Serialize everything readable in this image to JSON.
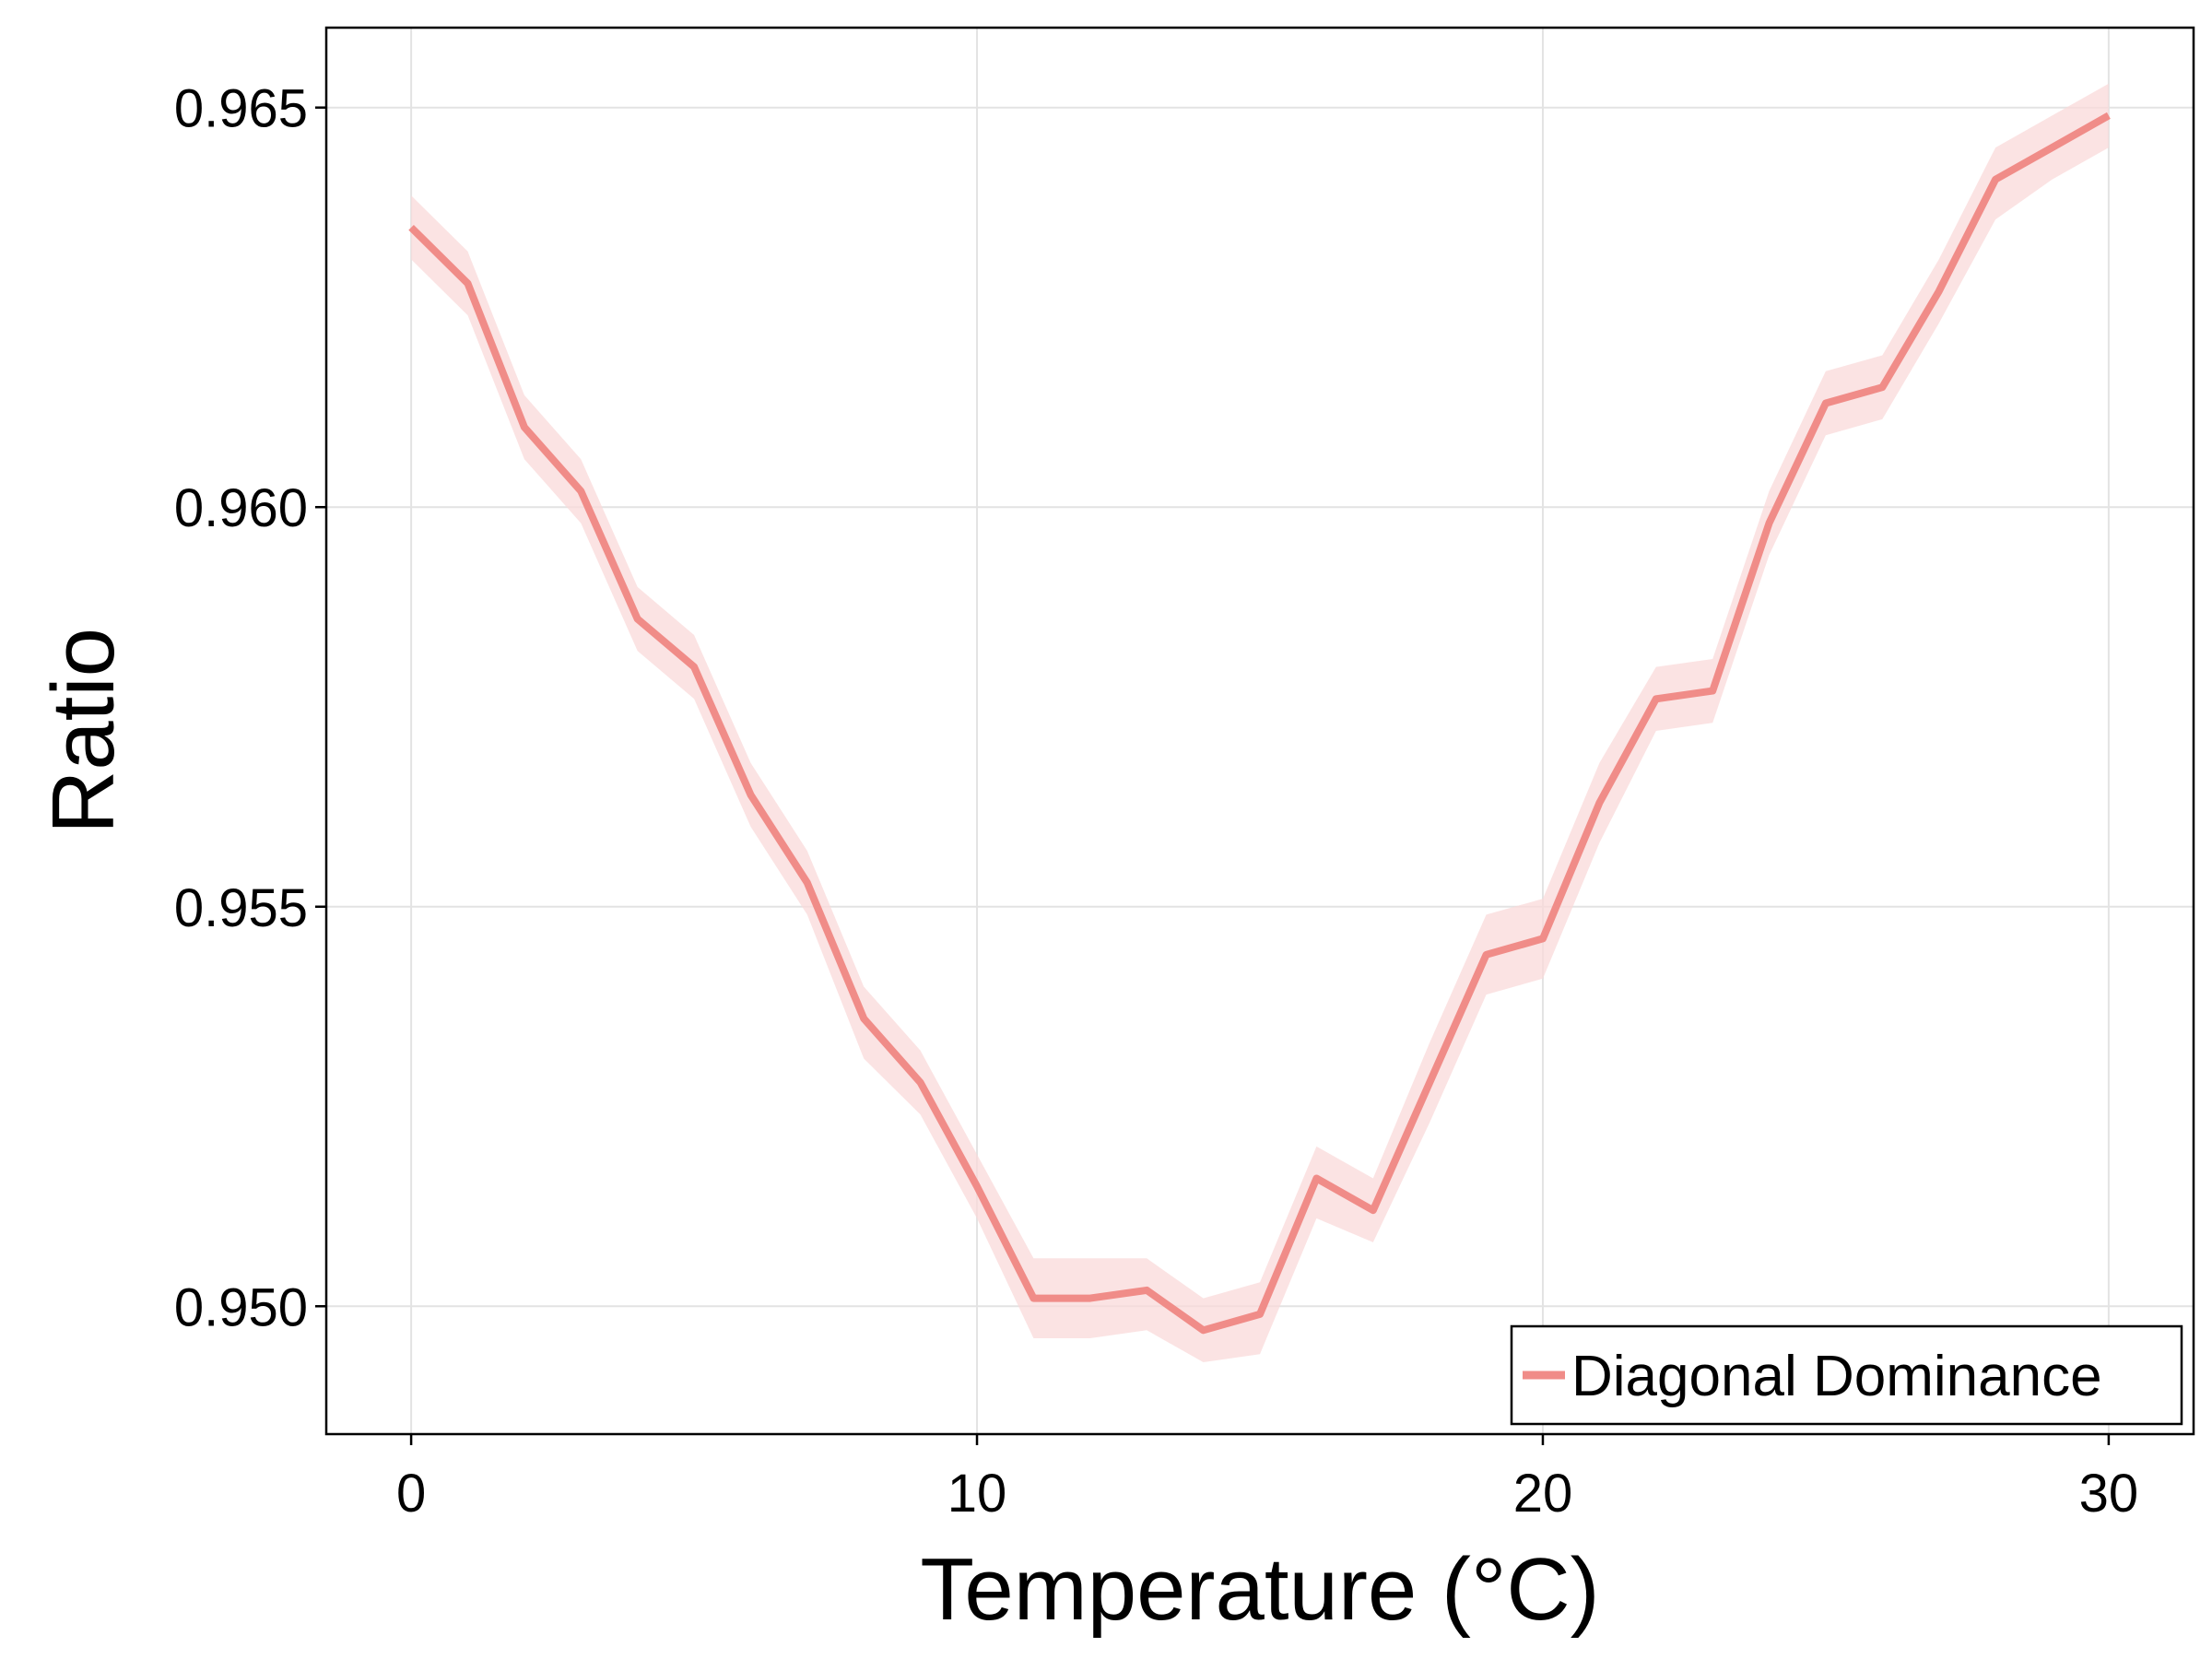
{
  "chart_data": {
    "type": "line",
    "xlabel": "Temperature (°C)",
    "ylabel": "Ratio",
    "xlim": [
      -1.5,
      31.5
    ],
    "ylim": [
      0.9484,
      0.966
    ],
    "xticks": [
      0,
      10,
      20,
      30
    ],
    "xtick_labels": [
      "0",
      "10",
      "20",
      "30"
    ],
    "yticks": [
      0.95,
      0.955,
      0.96,
      0.965
    ],
    "ytick_labels": [
      "0.950",
      "0.955",
      "0.960",
      "0.965"
    ],
    "grid": true,
    "legend_position": "bottom-right",
    "series": [
      {
        "name": "Diagonal Dominance",
        "color": "#f08c88",
        "band_color": "#f9d9da",
        "x": [
          0,
          1,
          2,
          3,
          4,
          5,
          6,
          7,
          8,
          9,
          10,
          11,
          12,
          13,
          14,
          15,
          16,
          17,
          18,
          19,
          20,
          21,
          22,
          23,
          24,
          25,
          26,
          27,
          28,
          29,
          30
        ],
        "values": [
          0.9635,
          0.9628,
          0.961,
          0.9602,
          0.9586,
          0.958,
          0.9564,
          0.9553,
          0.9536,
          0.9528,
          0.9515,
          0.9501,
          0.9501,
          0.9502,
          0.9497,
          0.9499,
          0.9516,
          0.9512,
          0.9528,
          0.9544,
          0.9546,
          0.9563,
          0.9576,
          0.9577,
          0.9598,
          0.9613,
          0.9615,
          0.9627,
          0.9641,
          0.9645,
          0.9649
        ],
        "lower": [
          0.9631,
          0.9624,
          0.9606,
          0.9598,
          0.9582,
          0.9576,
          0.956,
          0.9549,
          0.9531,
          0.9524,
          0.9511,
          0.9496,
          0.9496,
          0.9497,
          0.9493,
          0.9494,
          0.9511,
          0.9508,
          0.9523,
          0.9539,
          0.9541,
          0.9558,
          0.9572,
          0.9573,
          0.9594,
          0.9609,
          0.9611,
          0.9623,
          0.9636,
          0.9641,
          0.9645
        ],
        "upper": [
          0.9639,
          0.9632,
          0.9614,
          0.9606,
          0.959,
          0.9584,
          0.9568,
          0.9557,
          0.954,
          0.9532,
          0.9519,
          0.9506,
          0.9506,
          0.9506,
          0.9501,
          0.9503,
          0.952,
          0.9516,
          0.9533,
          0.9549,
          0.9551,
          0.9568,
          0.958,
          0.9581,
          0.9602,
          0.9617,
          0.9619,
          0.9631,
          0.9645,
          0.9649,
          0.9653
        ]
      }
    ]
  }
}
